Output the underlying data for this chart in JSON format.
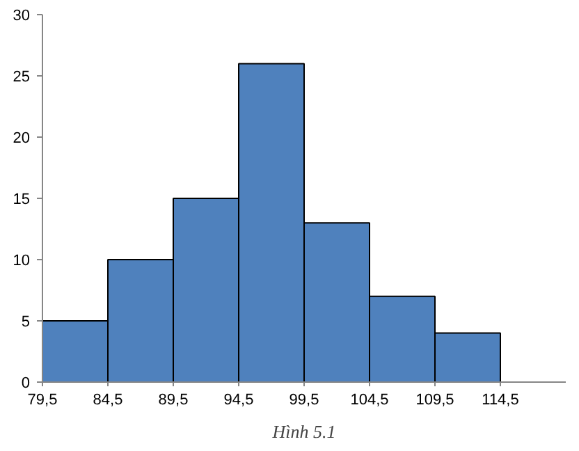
{
  "chart_data": {
    "type": "histogram",
    "bins": [
      79.5,
      84.5,
      89.5,
      94.5,
      99.5,
      104.5,
      109.5,
      114.5
    ],
    "values": [
      5,
      10,
      15,
      26,
      13,
      7,
      4
    ],
    "color": "#4f81bd",
    "xlim": [
      79.5,
      119.5
    ],
    "xticks": [
      {
        "value": 79.5,
        "label": "79,5"
      },
      {
        "value": 84.5,
        "label": "84,5"
      },
      {
        "value": 89.5,
        "label": "89,5"
      },
      {
        "value": 94.5,
        "label": "94,5"
      },
      {
        "value": 99.5,
        "label": "99,5"
      },
      {
        "value": 104.5,
        "label": "104,5"
      },
      {
        "value": 109.5,
        "label": "109,5"
      },
      {
        "value": 114.5,
        "label": "114,5"
      }
    ],
    "ylim": [
      0,
      30
    ],
    "yticks": [
      0,
      5,
      10,
      15,
      20,
      25,
      30
    ],
    "grid": false,
    "annotations": [
      "Hình 5.1"
    ]
  }
}
